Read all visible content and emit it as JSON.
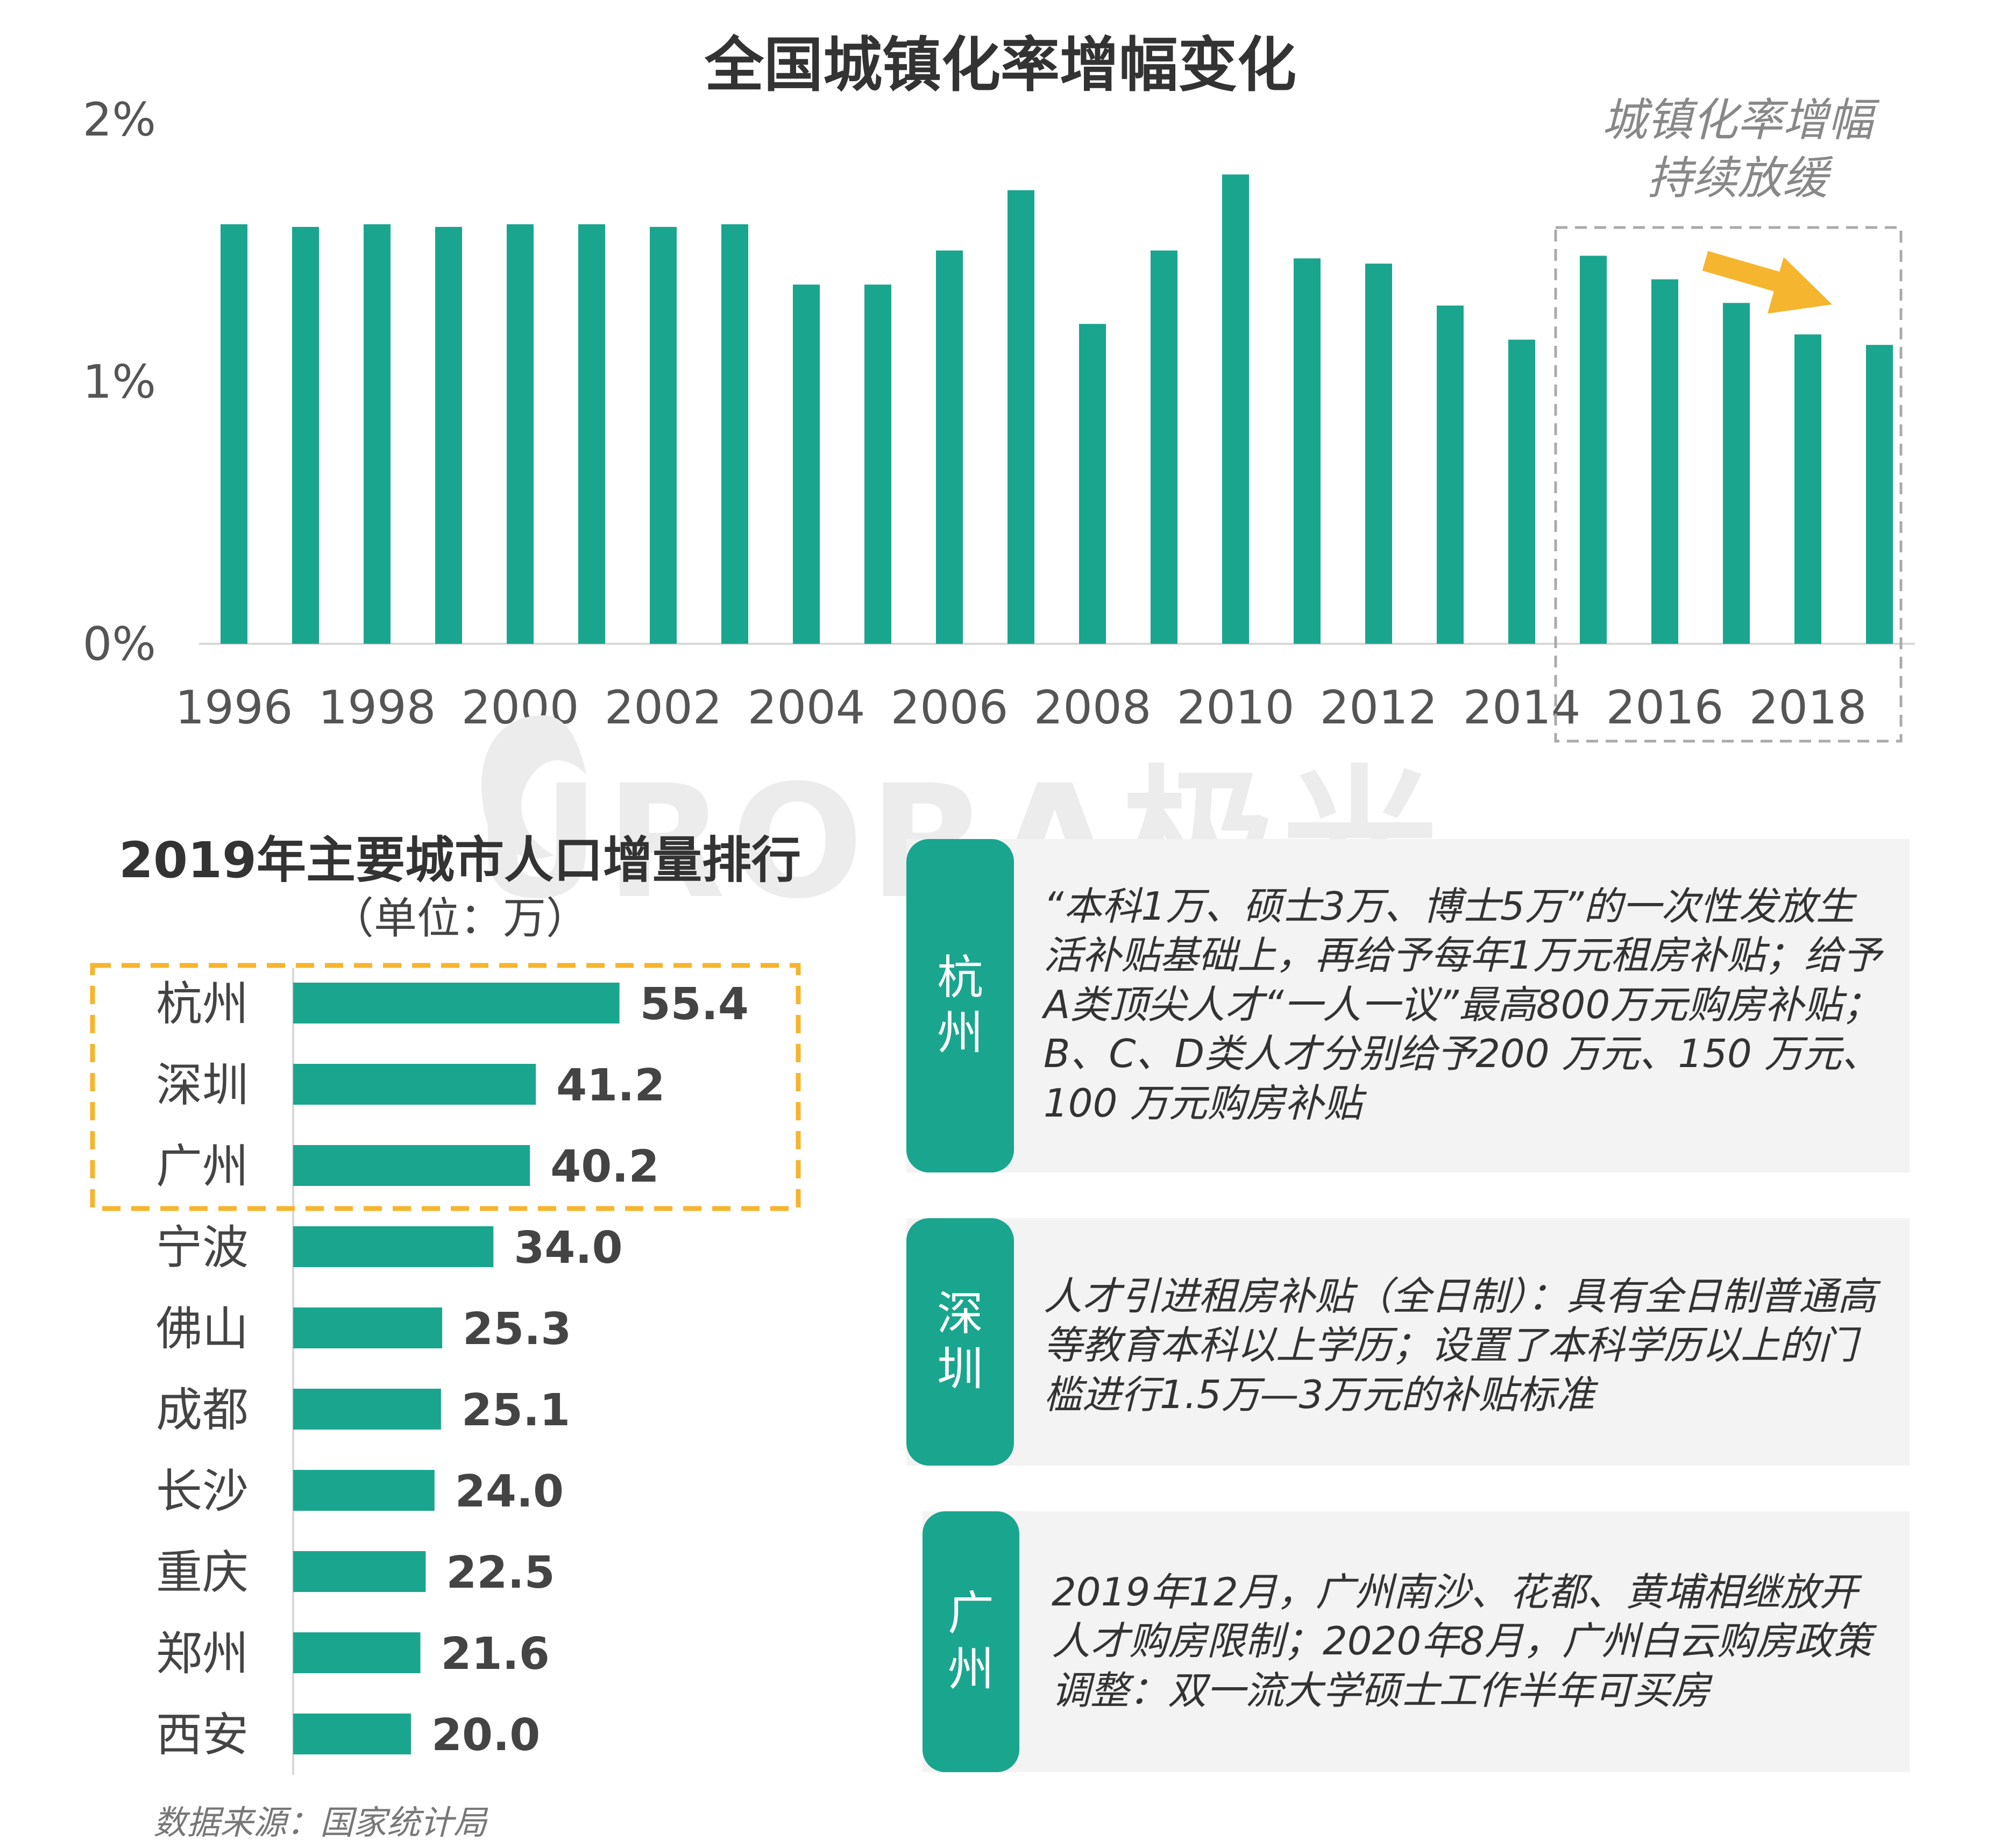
{
  "chart_data": [
    {
      "type": "bar",
      "title": "全国城镇化率增幅变化",
      "x": [
        1996,
        1997,
        1998,
        1999,
        2000,
        2001,
        2002,
        2003,
        2004,
        2005,
        2006,
        2007,
        2008,
        2009,
        2010,
        2011,
        2012,
        2013,
        2014,
        2015,
        2016,
        2017,
        2018,
        2019
      ],
      "values": [
        1.6,
        1.59,
        1.6,
        1.59,
        1.6,
        1.6,
        1.59,
        1.6,
        1.37,
        1.37,
        1.5,
        1.73,
        1.22,
        1.5,
        1.79,
        1.47,
        1.45,
        1.29,
        1.16,
        1.48,
        1.39,
        1.3,
        1.18,
        1.14
      ],
      "xticks": [
        "1996",
        "1998",
        "2000",
        "2002",
        "2004",
        "2006",
        "2008",
        "2010",
        "2012",
        "2014",
        "2016",
        "2018"
      ],
      "yticks": [
        "0%",
        "1%",
        "2%"
      ],
      "ylim": [
        0,
        2
      ],
      "color": "#1aa58f",
      "annotation": {
        "text": "城镇化率增幅持续放缓",
        "range": [
          2015,
          2019
        ],
        "arrow_color": "#f5b52e"
      }
    },
    {
      "type": "bar",
      "orientation": "horizontal",
      "title": "2019年主要城市人口增量排行",
      "unit": "（单位：万）",
      "categories": [
        "杭州",
        "深圳",
        "广州",
        "宁波",
        "佛山",
        "成都",
        "长沙",
        "重庆",
        "郑州",
        "西安"
      ],
      "values": [
        55.4,
        41.2,
        40.2,
        34.0,
        25.3,
        25.1,
        24.0,
        22.5,
        21.6,
        20.0
      ],
      "value_labels": [
        "55.4",
        "41.2",
        "40.2",
        "34.0",
        "25.3",
        "25.1",
        "24.0",
        "22.5",
        "21.6",
        "20.0"
      ],
      "color": "#1aa58f",
      "highlight_top": 3,
      "highlight_color": "#f5b52e"
    }
  ],
  "watermark": "URORA极光",
  "policies": [
    {
      "city": "杭州",
      "text": "“本科1万、硕士3万、博士5万”的一次性发放生活补贴基础上，再给予每年1万元租房补贴；给予A类顶尖人才“一人一议”最高800万元购房补贴；B、C、D类人才分别给予200 万元、150 万元、100 万元购房补贴"
    },
    {
      "city": "深圳",
      "text": "人才引进租房补贴（全日制）：具有全日制普通高等教育本科以上学历；设置了本科学历以上的门槛进行1.5万—3万元的补贴标准"
    },
    {
      "city": "广州",
      "text": "2019年12月，广州南沙、花都、黄埔相继放开人才购房限制；2020年8月，广州白云购房政策调整：双一流大学硕士工作半年可买房"
    }
  ],
  "source": "数据来源：国家统计局"
}
